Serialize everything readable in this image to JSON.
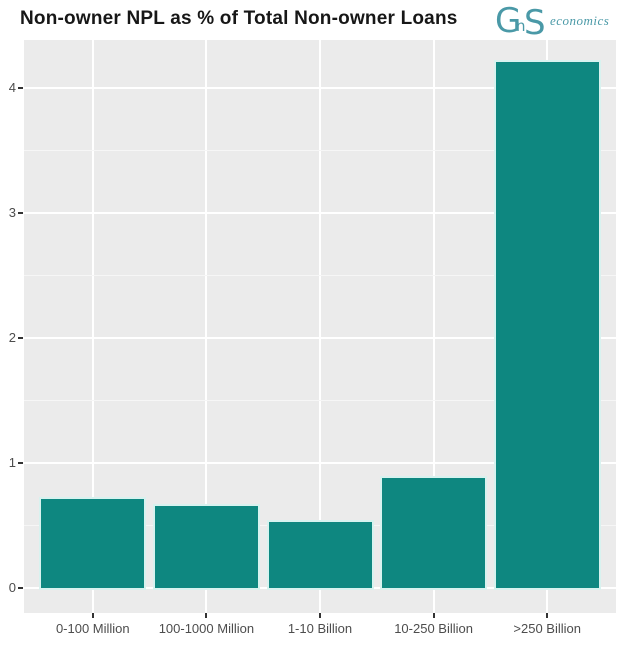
{
  "title": "Non-owner NPL as % of Total Non-owner Loans",
  "logo": {
    "g": "G",
    "n": "n",
    "s": "S",
    "sub": "economics"
  },
  "chart_data": {
    "type": "bar",
    "title": "Non-owner NPL as % of Total Non-owner Loans",
    "categories": [
      "0-100 Million",
      "100-1000 Million",
      "1-10 Billion",
      "10-250 Billion",
      ">250 Billion"
    ],
    "values": [
      0.71,
      0.66,
      0.53,
      0.88,
      4.21
    ],
    "xlabel": "",
    "ylabel": "",
    "ylim": [
      -0.2,
      4.43
    ],
    "yticks": [
      0,
      1,
      2,
      3,
      4
    ],
    "ytick_labels": [
      "0",
      "1",
      "2",
      "3",
      "4"
    ],
    "yticks_minor": [
      0.5,
      1.5,
      2.5,
      3.5
    ],
    "grid": "major-and-minor-white-on-gray",
    "legend": "none",
    "colors": {
      "bar_fill": "#0e8780",
      "bar_halo": "#d8f2ef",
      "panel_bg": "#ebebeb",
      "grid_major": "#ffffff",
      "grid_minor": "#f6f6f6",
      "tick_label": "#4d4d4d",
      "tick_mark": "#333333",
      "title": "#171717",
      "logo": "#4a99a7"
    }
  }
}
